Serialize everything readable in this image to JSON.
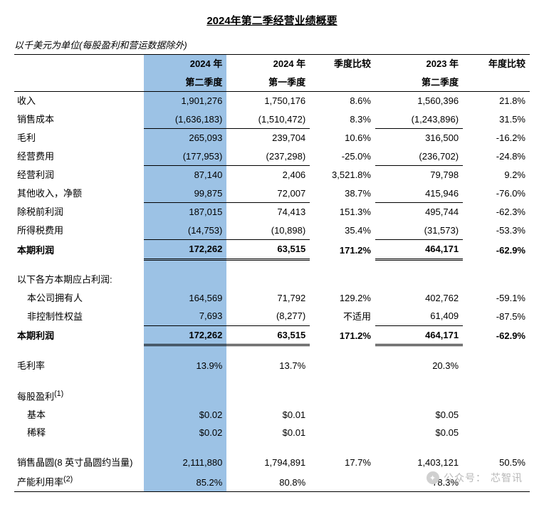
{
  "title": "2024年第二季经营业绩概要",
  "subtitle": "以千美元为单位(每股盈利和营运数据除外)",
  "columns": {
    "c1a": "2024 年",
    "c1b": "第二季度",
    "c2a": "2024 年",
    "c2b": "第一季度",
    "c3a": "季度比较",
    "c3b": "",
    "c4a": "2023 年",
    "c4b": "第二季度",
    "c5a": "年度比较",
    "c5b": ""
  },
  "rows": {
    "rev": {
      "l": "收入",
      "a": "1,901,276",
      "b": "1,750,176",
      "c": "8.6%",
      "d": "1,560,396",
      "e": "21.8%"
    },
    "cos": {
      "l": "销售成本",
      "a": "(1,636,183)",
      "b": "(1,510,472)",
      "c": "8.3%",
      "d": "(1,243,896)",
      "e": "31.5%"
    },
    "gp": {
      "l": "毛利",
      "a": "265,093",
      "b": "239,704",
      "c": "10.6%",
      "d": "316,500",
      "e": "-16.2%"
    },
    "opex": {
      "l": "经营费用",
      "a": "(177,953)",
      "b": "(237,298)",
      "c": "-25.0%",
      "d": "(236,702)",
      "e": "-24.8%"
    },
    "opin": {
      "l": "经营利润",
      "a": "87,140",
      "b": "2,406",
      "c": "3,521.8%",
      "d": "79,798",
      "e": "9.2%"
    },
    "oth": {
      "l": "其他收入，净额",
      "a": "99,875",
      "b": "72,007",
      "c": "38.7%",
      "d": "415,946",
      "e": "-76.0%"
    },
    "pbt": {
      "l": "除税前利润",
      "a": "187,015",
      "b": "74,413",
      "c": "151.3%",
      "d": "495,744",
      "e": "-62.3%"
    },
    "tax": {
      "l": "所得税费用",
      "a": "(14,753)",
      "b": "(10,898)",
      "c": "35.4%",
      "d": "(31,573)",
      "e": "-53.3%"
    },
    "np": {
      "l": "本期利润",
      "a": "172,262",
      "b": "63,515",
      "c": "171.2%",
      "d": "464,171",
      "e": "-62.9%"
    },
    "attr": {
      "l": "以下各方本期应占利润:"
    },
    "own": {
      "l": "本公司拥有人",
      "a": "164,569",
      "b": "71,792",
      "c": "129.2%",
      "d": "402,762",
      "e": "-59.1%"
    },
    "nci": {
      "l": "非控制性权益",
      "a": "7,693",
      "b": "(8,277)",
      "c": "不适用",
      "d": "61,409",
      "e": "-87.5%"
    },
    "np2": {
      "l": "本期利润",
      "a": "172,262",
      "b": "63,515",
      "c": "171.2%",
      "d": "464,171",
      "e": "-62.9%"
    },
    "gm": {
      "l": "毛利率",
      "a": "13.9%",
      "b": "13.7%",
      "c": "",
      "d": "20.3%",
      "e": ""
    },
    "eps": {
      "l": "每股盈利",
      "sup": "(1)"
    },
    "bas": {
      "l": "基本",
      "a": "$0.02",
      "b": "$0.01",
      "c": "",
      "d": "$0.05",
      "e": ""
    },
    "dil": {
      "l": "稀释",
      "a": "$0.02",
      "b": "$0.01",
      "c": "",
      "d": "$0.05",
      "e": ""
    },
    "wship": {
      "l": "销售晶圆(8 英寸晶圆约当量)",
      "a": "2,111,880",
      "b": "1,794,891",
      "c": "17.7%",
      "d": "1,403,121",
      "e": "50.5%"
    },
    "util": {
      "l": "产能利用率",
      "sup": "(2)",
      "a": "85.2%",
      "b": "80.8%",
      "c": "",
      "d": "78.3%",
      "e": ""
    }
  },
  "watermark": {
    "prefix": "公众号：",
    "name": "芯智讯"
  },
  "colors": {
    "highlight": "#9cc2e5",
    "text": "#000000",
    "bg": "#ffffff",
    "wm": "#b8b8b8"
  }
}
